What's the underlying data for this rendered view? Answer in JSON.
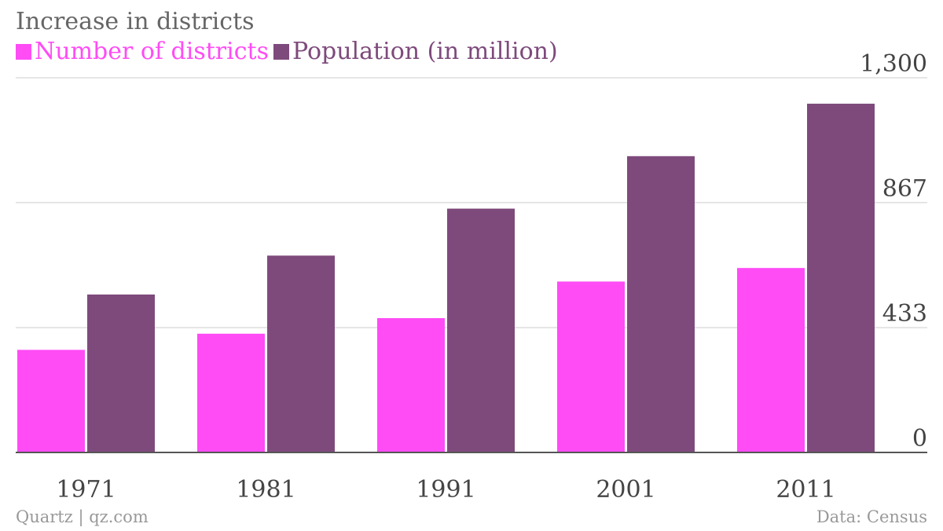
{
  "chart_data": {
    "type": "bar",
    "title": "Increase in districts",
    "categories": [
      "1971",
      "1981",
      "1991",
      "2001",
      "2011"
    ],
    "series": [
      {
        "name": "Number of districts",
        "color": "#ff4cf5",
        "values": [
          356,
          412,
          466,
          593,
          640
        ]
      },
      {
        "name": "Population (in million)",
        "color": "#7e4a7c",
        "values": [
          548,
          683,
          846,
          1028,
          1210
        ]
      }
    ],
    "y_ticks": [
      {
        "value": 0,
        "label": "0"
      },
      {
        "value": 433,
        "label": "433"
      },
      {
        "value": 867,
        "label": "867"
      },
      {
        "value": 1300,
        "label": "1,300"
      }
    ],
    "ylim": [
      0,
      1300
    ],
    "y_axis_side": "right",
    "grid": true,
    "legend_position": "top-left"
  },
  "footer": {
    "source_left": "Quartz | qz.com",
    "source_right": "Data: Census"
  }
}
